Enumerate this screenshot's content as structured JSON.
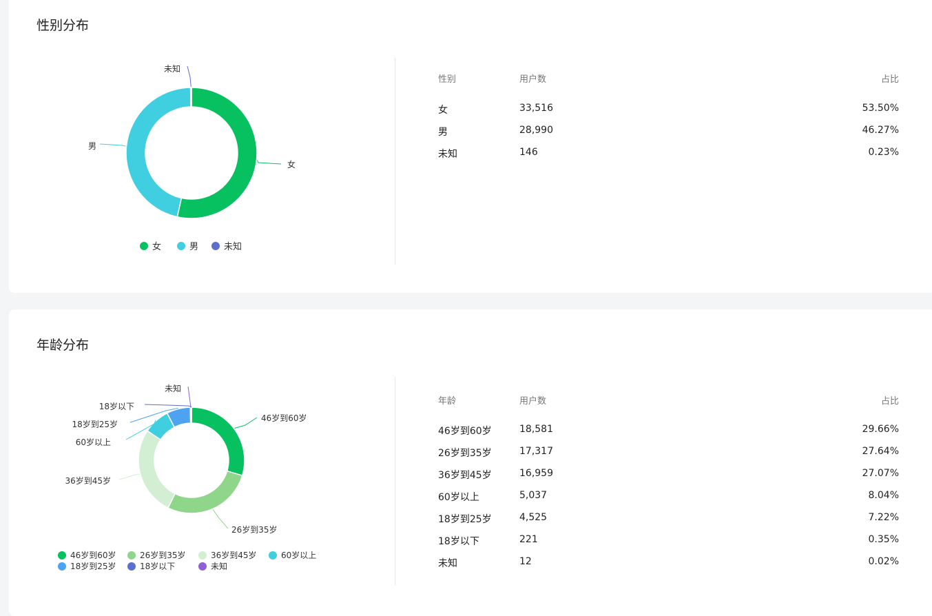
{
  "gender_section": {
    "title": "性别分布",
    "table": {
      "headers": [
        "性别",
        "用户数",
        "占比"
      ],
      "rows": [
        {
          "label": "女",
          "count": "33,516",
          "pct": "53.50%"
        },
        {
          "label": "男",
          "count": "28,990",
          "pct": "46.27%"
        },
        {
          "label": "未知",
          "count": "146",
          "pct": "0.23%"
        }
      ]
    },
    "legend": [
      "女",
      "男",
      "未知"
    ]
  },
  "age_section": {
    "title": "年龄分布",
    "table": {
      "headers": [
        "年龄",
        "用户数",
        "占比"
      ],
      "rows": [
        {
          "label": "46岁到60岁",
          "count": "18,581",
          "pct": "29.66%"
        },
        {
          "label": "26岁到35岁",
          "count": "17,317",
          "pct": "27.64%"
        },
        {
          "label": "36岁到45岁",
          "count": "16,959",
          "pct": "27.07%"
        },
        {
          "label": "60岁以上",
          "count": "5,037",
          "pct": "8.04%"
        },
        {
          "label": "18岁到25岁",
          "count": "4,525",
          "pct": "7.22%"
        },
        {
          "label": "18岁以下",
          "count": "221",
          "pct": "0.35%"
        },
        {
          "label": "未知",
          "count": "12",
          "pct": "0.02%"
        }
      ]
    },
    "legend": [
      "46岁到60岁",
      "26岁到35岁",
      "36岁到45岁",
      "60岁以上",
      "18岁到25岁",
      "18岁以下",
      "未知"
    ]
  },
  "chart_data": [
    {
      "type": "pie",
      "categories": [
        "女",
        "男",
        "未知"
      ],
      "values": [
        33516,
        28990,
        146
      ],
      "colors": [
        "#07c160",
        "#40cfe0",
        "#5b6fcc"
      ],
      "legend_position": "bottom"
    },
    {
      "type": "pie",
      "categories": [
        "46岁到60岁",
        "26岁到35岁",
        "36岁到45岁",
        "60岁以上",
        "18岁到25岁",
        "18岁以下",
        "未知"
      ],
      "values": [
        18581,
        17317,
        16959,
        5037,
        4525,
        221,
        12
      ],
      "colors": [
        "#07c160",
        "#8fd58a",
        "#d3efd3",
        "#40cfe0",
        "#4da3f0",
        "#5b6fcc",
        "#8e60d4"
      ],
      "legend_position": "bottom"
    }
  ]
}
